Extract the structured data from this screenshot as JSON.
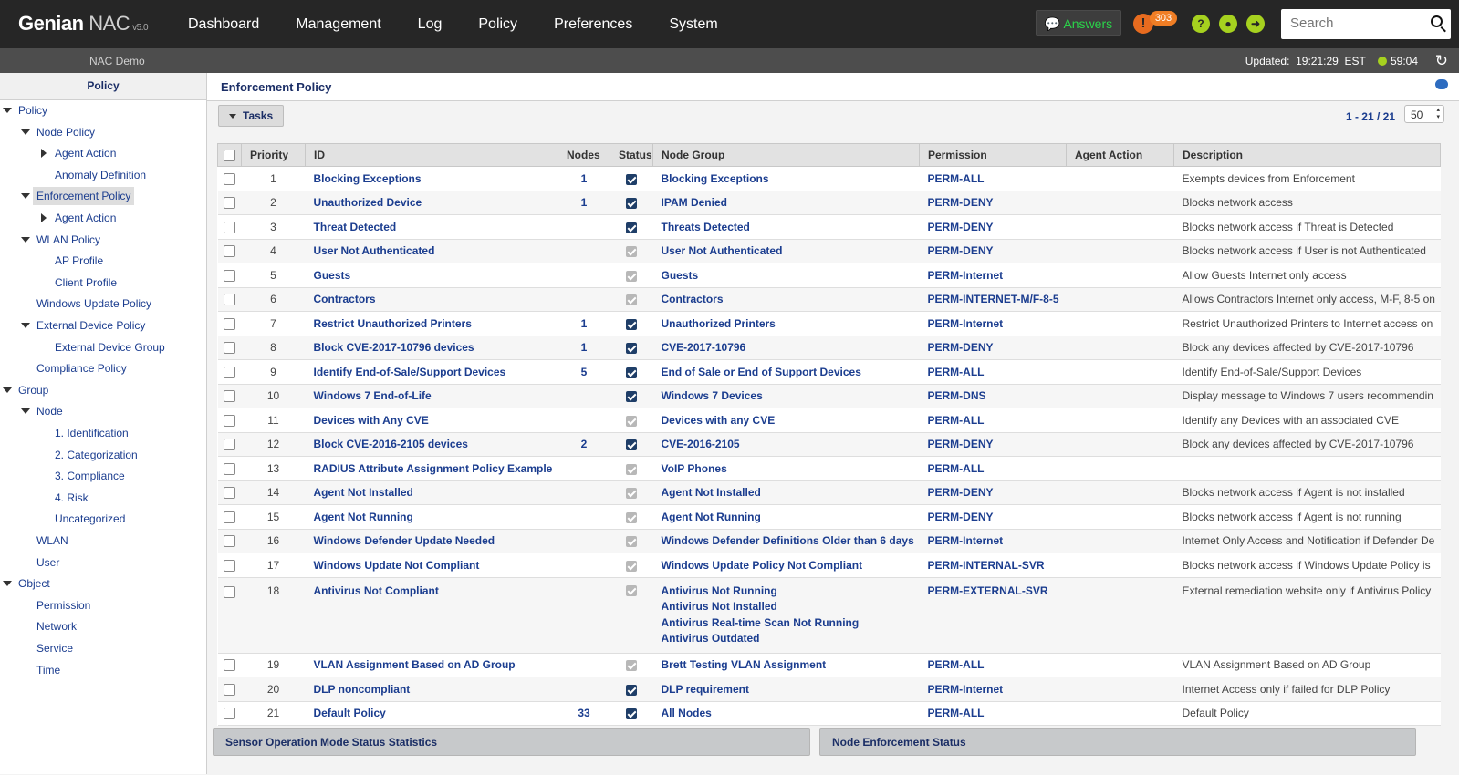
{
  "header": {
    "logo_main": "Genian",
    "logo_nac": "NAC",
    "logo_version": "v5.0",
    "nav": [
      "Dashboard",
      "Management",
      "Log",
      "Policy",
      "Preferences",
      "System"
    ],
    "answers_label": "Answers",
    "alert_count": "303",
    "search_placeholder": "Search"
  },
  "subheader": {
    "site": "NAC Demo",
    "updated_label": "Updated:",
    "updated_time": "19:21:29",
    "timezone": "EST",
    "session_timer": "59:04"
  },
  "sidebar": {
    "title": "Policy",
    "items": [
      {
        "label": "Policy"
      },
      {
        "label": "Node Policy"
      },
      {
        "label": "Agent Action"
      },
      {
        "label": "Anomaly Definition"
      },
      {
        "label": "Enforcement Policy"
      },
      {
        "label": "Agent Action"
      },
      {
        "label": "WLAN Policy"
      },
      {
        "label": "AP Profile"
      },
      {
        "label": "Client Profile"
      },
      {
        "label": "Windows Update Policy"
      },
      {
        "label": "External Device Policy"
      },
      {
        "label": "External Device Group"
      },
      {
        "label": "Compliance Policy"
      },
      {
        "label": "Group"
      },
      {
        "label": "Node"
      },
      {
        "label": "1. Identification"
      },
      {
        "label": "2. Categorization"
      },
      {
        "label": "3. Compliance"
      },
      {
        "label": "4. Risk"
      },
      {
        "label": "Uncategorized"
      },
      {
        "label": "WLAN"
      },
      {
        "label": "User"
      },
      {
        "label": "Object"
      },
      {
        "label": "Permission"
      },
      {
        "label": "Network"
      },
      {
        "label": "Service"
      },
      {
        "label": "Time"
      }
    ]
  },
  "main": {
    "title": "Enforcement Policy",
    "tasks_label": "Tasks",
    "pager": "1 - 21 / 21",
    "per_page": "50"
  },
  "table": {
    "headers": [
      "Priority",
      "ID",
      "Nodes",
      "Status",
      "Node Group",
      "Permission",
      "Agent Action",
      "Description"
    ],
    "rows": [
      {
        "priority": "1",
        "id": "Blocking Exceptions",
        "nodes": "1",
        "enabled": true,
        "node_group": "Blocking Exceptions",
        "permission": "PERM-ALL",
        "description": "Exempts devices from Enforcement"
      },
      {
        "priority": "2",
        "id": "Unauthorized Device",
        "nodes": "1",
        "enabled": true,
        "node_group": "IPAM Denied",
        "permission": "PERM-DENY",
        "description": "Blocks network access"
      },
      {
        "priority": "3",
        "id": "Threat Detected",
        "nodes": "",
        "enabled": true,
        "node_group": "Threats Detected",
        "permission": "PERM-DENY",
        "description": "Blocks network access if Threat is Detected"
      },
      {
        "priority": "4",
        "id": "User Not Authenticated",
        "nodes": "",
        "enabled": false,
        "node_group": "User Not Authenticated",
        "permission": "PERM-DENY",
        "description": "Blocks network access if User is not Authenticated"
      },
      {
        "priority": "5",
        "id": "Guests",
        "nodes": "",
        "enabled": false,
        "node_group": "Guests",
        "permission": "PERM-Internet",
        "description": "Allow Guests Internet only access"
      },
      {
        "priority": "6",
        "id": "Contractors",
        "nodes": "",
        "enabled": false,
        "node_group": "Contractors",
        "permission": "PERM-INTERNET-M/F-8-5",
        "description": "Allows Contractors Internet only access, M-F, 8-5 on"
      },
      {
        "priority": "7",
        "id": "Restrict Unauthorized Printers",
        "nodes": "1",
        "enabled": true,
        "node_group": "Unauthorized Printers",
        "permission": "PERM-Internet",
        "description": "Restrict Unauthorized Printers to Internet access on"
      },
      {
        "priority": "8",
        "id": "Block CVE-2017-10796 devices",
        "nodes": "1",
        "enabled": true,
        "node_group": "CVE-2017-10796",
        "permission": "PERM-DENY",
        "description": "Block any devices affected by CVE-2017-10796"
      },
      {
        "priority": "9",
        "id": "Identify End-of-Sale/Support Devices",
        "nodes": "5",
        "enabled": true,
        "node_group": "End of Sale or End of Support Devices",
        "permission": "PERM-ALL",
        "description": "Identify End-of-Sale/Support Devices"
      },
      {
        "priority": "10",
        "id": "Windows 7 End-of-Life",
        "nodes": "",
        "enabled": true,
        "node_group": "Windows 7 Devices",
        "permission": "PERM-DNS",
        "description": "Display message to Windows 7 users recommendin"
      },
      {
        "priority": "11",
        "id": "Devices with Any CVE",
        "nodes": "",
        "enabled": false,
        "node_group": "Devices with any CVE",
        "permission": "PERM-ALL",
        "description": "Identify any Devices with an associated CVE"
      },
      {
        "priority": "12",
        "id": "Block CVE-2016-2105 devices",
        "nodes": "2",
        "enabled": true,
        "node_group": "CVE-2016-2105",
        "permission": "PERM-DENY",
        "description": "Block any devices affected by CVE-2017-10796"
      },
      {
        "priority": "13",
        "id": "RADIUS Attribute Assignment Policy Example",
        "nodes": "",
        "enabled": false,
        "node_group": "VoIP Phones",
        "permission": "PERM-ALL",
        "description": ""
      },
      {
        "priority": "14",
        "id": "Agent Not Installed",
        "nodes": "",
        "enabled": false,
        "node_group": "Agent Not Installed",
        "permission": "PERM-DENY",
        "description": "Blocks network access if Agent is not installed"
      },
      {
        "priority": "15",
        "id": "Agent Not Running",
        "nodes": "",
        "enabled": false,
        "node_group": "Agent Not Running",
        "permission": "PERM-DENY",
        "description": "Blocks network access if Agent is not running"
      },
      {
        "priority": "16",
        "id": "Windows Defender Update Needed",
        "nodes": "",
        "enabled": false,
        "node_group": "Windows Defender Definitions Older than 6 days",
        "permission": "PERM-Internet",
        "description": "Internet Only Access and Notification if Defender De"
      },
      {
        "priority": "17",
        "id": "Windows Update Not Compliant",
        "nodes": "",
        "enabled": false,
        "node_group": "Windows Update Policy Not Compliant",
        "permission": "PERM-INTERNAL-SVR",
        "description": "Blocks network access if Windows Update Policy is"
      },
      {
        "priority": "18",
        "id": "Antivirus Not Compliant",
        "nodes": "",
        "enabled": false,
        "node_groups": [
          "Antivirus Not Running",
          "Antivirus Not Installed",
          "Antivirus Real-time Scan Not Running",
          "Antivirus Outdated"
        ],
        "permission": "PERM-EXTERNAL-SVR",
        "description": "External remediation website only if Antivirus Policy"
      },
      {
        "priority": "19",
        "id": "VLAN Assignment Based on AD Group",
        "nodes": "",
        "enabled": false,
        "node_group": "Brett Testing VLAN Assignment",
        "permission": "PERM-ALL",
        "description": "VLAN Assignment Based on AD Group"
      },
      {
        "priority": "20",
        "id": "DLP noncompliant",
        "nodes": "",
        "enabled": true,
        "node_group": "DLP requirement",
        "permission": "PERM-Internet",
        "description": "Internet Access only if failed for DLP Policy"
      },
      {
        "priority": "21",
        "id": "Default Policy",
        "nodes": "33",
        "enabled": true,
        "node_group": "All Nodes",
        "permission": "PERM-ALL",
        "description": "Default Policy"
      }
    ]
  },
  "panels": {
    "left": "Sensor Operation Mode Status Statistics",
    "right": "Node Enforcement Status"
  }
}
